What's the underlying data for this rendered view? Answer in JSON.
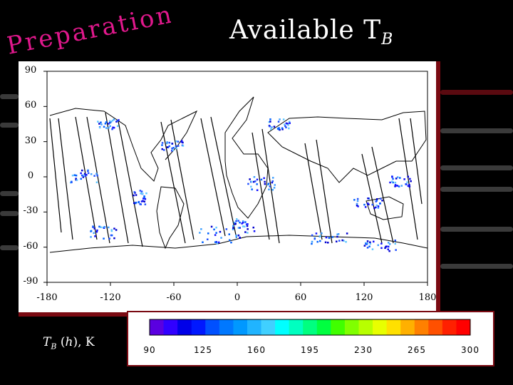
{
  "slide": {
    "preparation_title": "Preparation",
    "main_title_text": "Available T",
    "main_title_sub": "B",
    "legend_label_T": "T",
    "legend_label_sub": "B",
    "legend_label_h": "h",
    "legend_label_unit": "K"
  },
  "map": {
    "y_ticks": [
      "90",
      "60",
      "30",
      "0",
      "-30",
      "-60",
      "-90"
    ],
    "x_ticks": [
      "-180",
      "-120",
      "-60",
      "0",
      "60",
      "120",
      "180"
    ]
  },
  "colorbar": {
    "ticks": [
      "90",
      "125",
      "160",
      "195",
      "230",
      "265",
      "300"
    ],
    "colors": [
      "#5a00e0",
      "#3000ff",
      "#0000e8",
      "#0018ff",
      "#0050ff",
      "#0078ff",
      "#0098ff",
      "#20b4ff",
      "#40d0ff",
      "#00ffff",
      "#00ffc0",
      "#00ff80",
      "#00ff40",
      "#40ff00",
      "#80ff00",
      "#b8ff00",
      "#e8ff00",
      "#ffe000",
      "#ffb000",
      "#ff8000",
      "#ff5000",
      "#ff2000",
      "#ff0000"
    ]
  },
  "colors": {
    "title_pink": "#e0188c",
    "frame_red": "#7a0a12"
  }
}
